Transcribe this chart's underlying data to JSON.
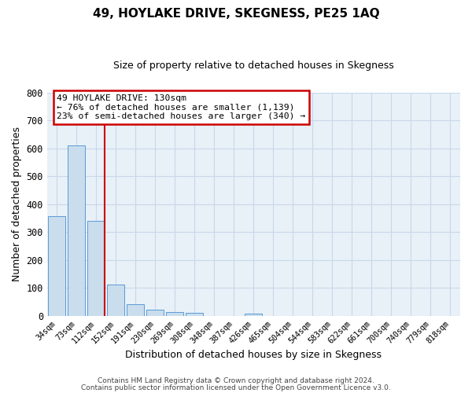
{
  "title": "49, HOYLAKE DRIVE, SKEGNESS, PE25 1AQ",
  "subtitle": "Size of property relative to detached houses in Skegness",
  "xlabel": "Distribution of detached houses by size in Skegness",
  "ylabel": "Number of detached properties",
  "bar_labels": [
    "34sqm",
    "73sqm",
    "112sqm",
    "152sqm",
    "191sqm",
    "230sqm",
    "269sqm",
    "308sqm",
    "348sqm",
    "387sqm",
    "426sqm",
    "465sqm",
    "504sqm",
    "544sqm",
    "583sqm",
    "622sqm",
    "661sqm",
    "700sqm",
    "740sqm",
    "779sqm",
    "818sqm"
  ],
  "bar_values": [
    358,
    610,
    340,
    113,
    40,
    22,
    13,
    10,
    0,
    0,
    8,
    0,
    0,
    0,
    0,
    0,
    0,
    0,
    0,
    0,
    0
  ],
  "bar_color": "#c9dded",
  "bar_edge_color": "#5b9bd5",
  "vline_color": "#cc0000",
  "annotation_text": "49 HOYLAKE DRIVE: 130sqm\n← 76% of detached houses are smaller (1,139)\n23% of semi-detached houses are larger (340) →",
  "annotation_box_color": "#cc0000",
  "ylim": [
    0,
    800
  ],
  "yticks": [
    0,
    100,
    200,
    300,
    400,
    500,
    600,
    700,
    800
  ],
  "bg_axes_color": "#e8f0f8",
  "grid_color": "#c8d8e8",
  "footer_line1": "Contains HM Land Registry data © Crown copyright and database right 2024.",
  "footer_line2": "Contains public sector information licensed under the Open Government Licence v3.0.",
  "vline_pos": 2.44
}
